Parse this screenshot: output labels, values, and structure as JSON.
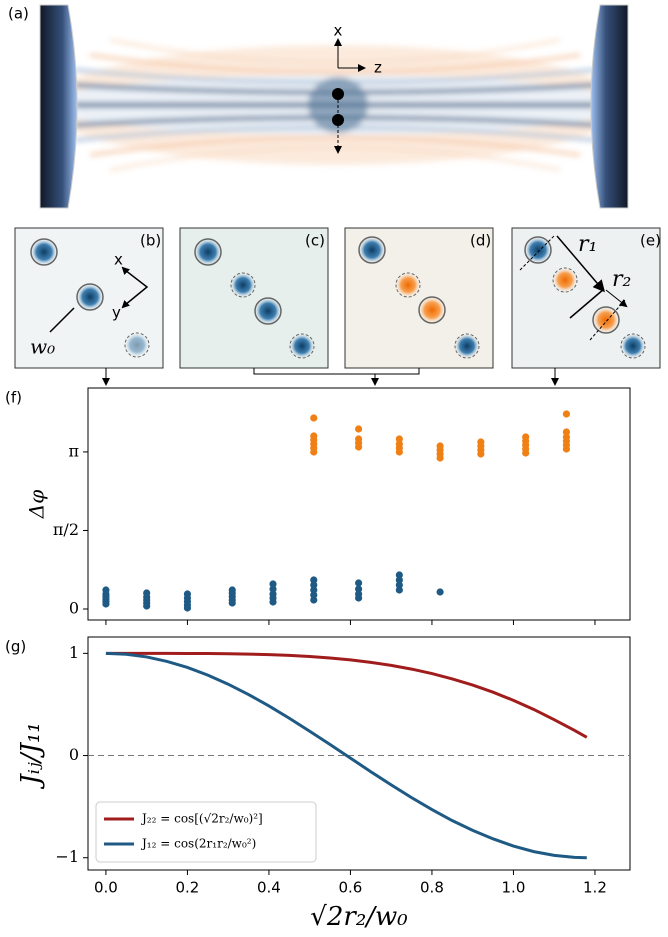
{
  "panel_a": {
    "label": "(a)",
    "axis_x": "x",
    "axis_z": "z"
  },
  "panels": [
    {
      "label": "(b)",
      "texts": [
        "x",
        "y",
        "w₀"
      ]
    },
    {
      "label": "(c)"
    },
    {
      "label": "(d)"
    },
    {
      "label": "(e)",
      "texts": [
        "r₁",
        "r₂"
      ]
    }
  ],
  "chart_data": [
    {
      "type": "scatter",
      "panel_label": "(f)",
      "y_label": "Δφ",
      "series": [
        {
          "color": "#1f5a85",
          "x": [
            0,
            0,
            0,
            0,
            0,
            0,
            0.1,
            0.1,
            0.1,
            0.1,
            0.1,
            0.2,
            0.2,
            0.2,
            0.2,
            0.2,
            0.31,
            0.31,
            0.31,
            0.31,
            0.31,
            0.41,
            0.41,
            0.41,
            0.41,
            0.41,
            0.51,
            0.51,
            0.51,
            0.51,
            0.51,
            0.62,
            0.62,
            0.62,
            0.62,
            0.72,
            0.72,
            0.72,
            0.72,
            0.82
          ],
          "values": [
            0.1,
            0.15,
            0.2,
            0.25,
            0.3,
            0.38,
            0.06,
            0.12,
            0.18,
            0.24,
            0.32,
            0.02,
            0.08,
            0.15,
            0.22,
            0.3,
            0.12,
            0.18,
            0.25,
            0.32,
            0.38,
            0.14,
            0.22,
            0.3,
            0.4,
            0.5,
            0.18,
            0.28,
            0.38,
            0.48,
            0.58,
            0.22,
            0.3,
            0.4,
            0.52,
            0.38,
            0.48,
            0.58,
            0.68,
            0.34
          ]
        },
        {
          "color": "#f07f14",
          "x": [
            0.51,
            0.51,
            0.51,
            0.51,
            0.51,
            0.51,
            0.62,
            0.62,
            0.62,
            0.62,
            0.72,
            0.72,
            0.72,
            0.72,
            0.82,
            0.82,
            0.82,
            0.82,
            0.92,
            0.92,
            0.92,
            0.92,
            1.03,
            1.03,
            1.03,
            1.03,
            1.03,
            1.13,
            1.13,
            1.13,
            1.13,
            1.13,
            1.13
          ],
          "values": [
            3.14,
            3.22,
            3.3,
            3.38,
            3.46,
            3.82,
            3.24,
            3.32,
            3.4,
            3.6,
            3.14,
            3.22,
            3.3,
            3.4,
            3.02,
            3.1,
            3.18,
            3.26,
            3.1,
            3.18,
            3.26,
            3.34,
            3.12,
            3.2,
            3.28,
            3.36,
            3.44,
            3.2,
            3.28,
            3.36,
            3.44,
            3.54,
            3.9
          ]
        }
      ],
      "xlim": [
        -0.044,
        1.286
      ],
      "ylim": [
        -0.22,
        4.42
      ],
      "xticks": [
        0,
        0.2,
        0.4,
        0.6,
        0.8,
        1,
        1.2
      ],
      "xtick_labels": false,
      "yticks": [
        0,
        {
          "value": 1.5708,
          "label": "π/2"
        },
        {
          "value": 3.14159,
          "label": "π"
        }
      ]
    },
    {
      "type": "line",
      "panel_label": "(g)",
      "x_label": "√2r₂/w₀",
      "y_label": "Jᵢⱼ/J₁₁",
      "x": [
        0,
        0.05,
        0.1,
        0.15,
        0.2,
        0.25,
        0.3,
        0.35,
        0.4,
        0.45,
        0.5,
        0.55,
        0.6,
        0.65,
        0.7,
        0.75,
        0.8,
        0.85,
        0.9,
        0.95,
        1.0,
        1.05,
        1.1,
        1.15,
        1.18
      ],
      "series": [
        {
          "name": "J₂₂ = cos[(√2r₂/w₀)²]",
          "color": "#a11d1d",
          "values": [
            1,
            1,
            1,
            1,
            0.999,
            0.998,
            0.996,
            0.993,
            0.987,
            0.98,
            0.969,
            0.955,
            0.936,
            0.912,
            0.882,
            0.846,
            0.802,
            0.75,
            0.69,
            0.62,
            0.54,
            0.451,
            0.351,
            0.246,
            0.178
          ]
        },
        {
          "name": "J₁₂ = cos(2r₁r₂/w₀²)",
          "color": "#1f5a85",
          "values": [
            1,
            0.991,
            0.965,
            0.921,
            0.862,
            0.787,
            0.698,
            0.597,
            0.485,
            0.365,
            0.238,
            0.108,
            -0.025,
            -0.158,
            -0.287,
            -0.412,
            -0.529,
            -0.637,
            -0.732,
            -0.815,
            -0.886,
            -0.94,
            -0.977,
            -0.997,
            -1
          ]
        }
      ],
      "xlim": [
        -0.044,
        1.286
      ],
      "ylim": [
        -1.12,
        1.16
      ],
      "xticks": [
        {
          "value": 0,
          "label": "0.0"
        },
        0.2,
        0.4,
        0.6,
        0.8,
        {
          "value": 1,
          "label": "1.0"
        },
        1.2
      ],
      "yticks": [
        {
          "value": -1,
          "label": "−1"
        },
        0,
        1
      ],
      "hlines": [
        0
      ],
      "legend": "lower left"
    }
  ]
}
